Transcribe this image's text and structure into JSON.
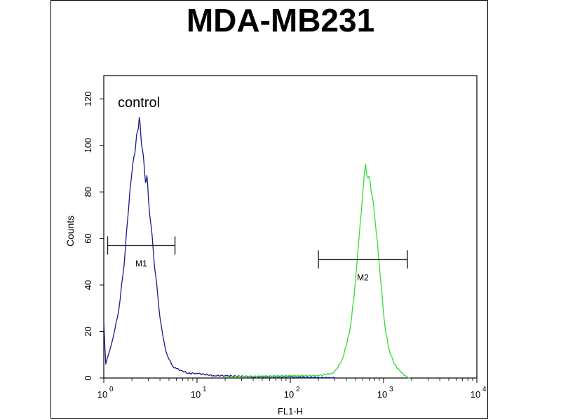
{
  "chart_data": {
    "type": "area",
    "title": "MDA-MB231",
    "xlabel": "FL1-H",
    "ylabel": "Counts",
    "x_scale": "log",
    "xlim": [
      1,
      10000
    ],
    "ylim": [
      0,
      130
    ],
    "x_ticks": [
      {
        "base": "10",
        "exp": "0"
      },
      {
        "base": "10",
        "exp": "1"
      },
      {
        "base": "10",
        "exp": "2"
      },
      {
        "base": "10",
        "exp": "3"
      },
      {
        "base": "10",
        "exp": "4"
      }
    ],
    "y_ticks": [
      0,
      20,
      40,
      60,
      80,
      100,
      120
    ],
    "annotation": "control",
    "series": [
      {
        "color": "#1a1a8c",
        "points": [
          [
            1.0,
            24
          ],
          [
            1.05,
            6
          ],
          [
            1.12,
            10
          ],
          [
            1.2,
            14
          ],
          [
            1.3,
            20
          ],
          [
            1.4,
            26
          ],
          [
            1.5,
            34
          ],
          [
            1.6,
            44
          ],
          [
            1.7,
            55
          ],
          [
            1.8,
            68
          ],
          [
            1.9,
            80
          ],
          [
            2.0,
            88
          ],
          [
            2.1,
            95
          ],
          [
            2.2,
            100
          ],
          [
            2.3,
            106
          ],
          [
            2.4,
            112
          ],
          [
            2.5,
            104
          ],
          [
            2.6,
            98
          ],
          [
            2.7,
            92
          ],
          [
            2.8,
            84
          ],
          [
            2.9,
            87
          ],
          [
            3.0,
            78
          ],
          [
            3.2,
            66
          ],
          [
            3.4,
            54
          ],
          [
            3.6,
            44
          ],
          [
            3.8,
            35
          ],
          [
            4.0,
            26
          ],
          [
            4.3,
            18
          ],
          [
            4.6,
            12
          ],
          [
            5.0,
            8
          ],
          [
            5.5,
            5
          ],
          [
            6.0,
            4
          ],
          [
            7.0,
            3
          ],
          [
            8.0,
            2
          ],
          [
            10,
            2
          ],
          [
            15,
            1
          ],
          [
            20,
            1
          ],
          [
            40,
            0.5
          ],
          [
            100,
            0.5
          ],
          [
            300,
            0
          ]
        ]
      },
      {
        "color": "#33dd33",
        "points": [
          [
            20,
            0.5
          ],
          [
            100,
            1
          ],
          [
            200,
            1
          ],
          [
            280,
            2
          ],
          [
            320,
            4
          ],
          [
            360,
            8
          ],
          [
            400,
            14
          ],
          [
            440,
            22
          ],
          [
            480,
            34
          ],
          [
            520,
            50
          ],
          [
            560,
            66
          ],
          [
            600,
            80
          ],
          [
            640,
            92
          ],
          [
            680,
            86
          ],
          [
            720,
            84
          ],
          [
            760,
            78
          ],
          [
            800,
            70
          ],
          [
            860,
            58
          ],
          [
            920,
            44
          ],
          [
            980,
            32
          ],
          [
            1050,
            20
          ],
          [
            1150,
            12
          ],
          [
            1300,
            6
          ],
          [
            1500,
            3
          ],
          [
            1700,
            1
          ],
          [
            1900,
            0
          ]
        ]
      }
    ],
    "markers": [
      {
        "label": "M1",
        "x_range": [
          1.1,
          5.8
        ],
        "y": 57
      },
      {
        "label": "M2",
        "x_range": [
          200,
          1800
        ],
        "y": 51
      }
    ]
  }
}
